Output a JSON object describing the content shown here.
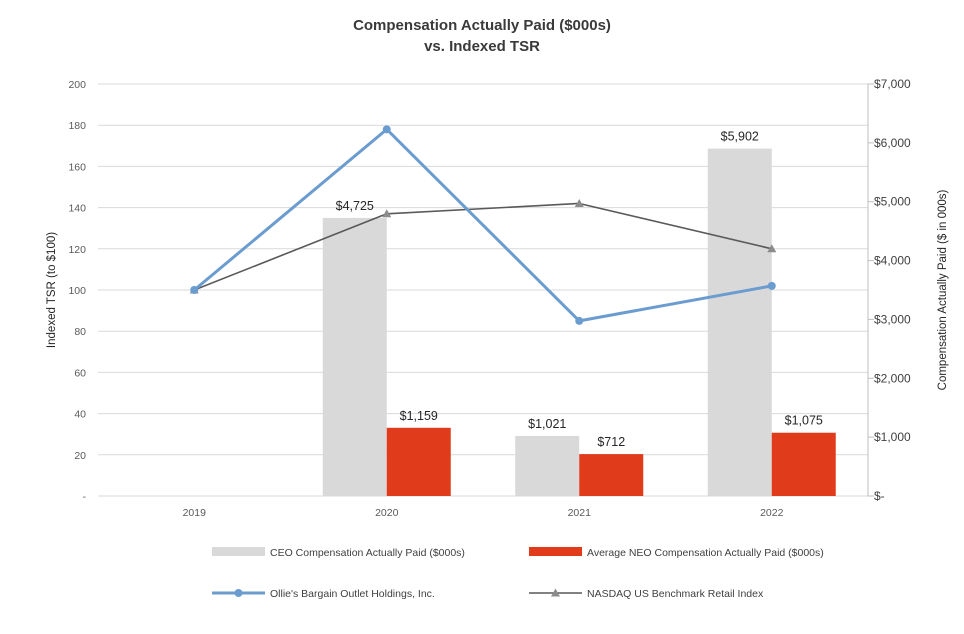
{
  "chart_data": {
    "type": "bar+line",
    "title_line1": "Compensation Actually Paid ($000s)",
    "title_line2": "vs. Indexed TSR",
    "categories": [
      "2019",
      "2020",
      "2021",
      "2022"
    ],
    "left_axis": {
      "label": "Indexed TSR (to $100)",
      "ylim": [
        0,
        200
      ],
      "ticks": [
        {
          "value": 0,
          "label": "-"
        },
        {
          "value": 20,
          "label": "20"
        },
        {
          "value": 40,
          "label": "40"
        },
        {
          "value": 60,
          "label": "60"
        },
        {
          "value": 80,
          "label": "80"
        },
        {
          "value": 100,
          "label": "100"
        },
        {
          "value": 120,
          "label": "120"
        },
        {
          "value": 140,
          "label": "140"
        },
        {
          "value": 160,
          "label": "160"
        },
        {
          "value": 180,
          "label": "180"
        },
        {
          "value": 200,
          "label": "200"
        }
      ]
    },
    "right_axis": {
      "label": "Compensation Actually Paid ($ in 000s)",
      "ylim": [
        0,
        7000
      ],
      "ticks": [
        {
          "value": 0,
          "label": "$-"
        },
        {
          "value": 1000,
          "label": "$1,000"
        },
        {
          "value": 2000,
          "label": "$2,000"
        },
        {
          "value": 3000,
          "label": "$3,000"
        },
        {
          "value": 4000,
          "label": "$4,000"
        },
        {
          "value": 5000,
          "label": "$5,000"
        },
        {
          "value": 6000,
          "label": "$6,000"
        },
        {
          "value": 7000,
          "label": "$7,000"
        }
      ]
    },
    "bar_series": [
      {
        "name": "CEO Compensation Actually Paid ($000s)",
        "color": "#d9d9d9",
        "values": [
          null,
          4725,
          1021,
          5902
        ],
        "labels": [
          "",
          "$4,725",
          "$1,021",
          "$5,902"
        ]
      },
      {
        "name": "Average NEO Compensation Actually Paid ($000s)",
        "color": "#e03c1b",
        "values": [
          null,
          1159,
          712,
          1075
        ],
        "labels": [
          "",
          "$1,159",
          "$712",
          "$1,075"
        ]
      }
    ],
    "line_series": [
      {
        "name": "Ollie's Bargain Outlet Holdings, Inc.",
        "color": "#6b9ccf",
        "marker": "circle",
        "values": [
          100,
          178,
          85,
          102
        ]
      },
      {
        "name": "NASDAQ US Benchmark Retail Index",
        "color": "#595959",
        "marker": "triangle",
        "values": [
          100,
          137,
          142,
          120
        ]
      }
    ],
    "legend": [
      {
        "label": "CEO Compensation Actually Paid ($000s)",
        "color": "#d9d9d9",
        "kind": "bar"
      },
      {
        "label": "Average NEO Compensation Actually Paid ($000s)",
        "color": "#e03c1b",
        "kind": "bar"
      },
      {
        "label": "Ollie's Bargain Outlet Holdings, Inc.",
        "color": "#6b9ccf",
        "kind": "line-circle"
      },
      {
        "label": "NASDAQ US Benchmark Retail Index",
        "color": "#595959",
        "kind": "line-triangle"
      }
    ],
    "gridlines": true,
    "legend_position": "bottom"
  }
}
